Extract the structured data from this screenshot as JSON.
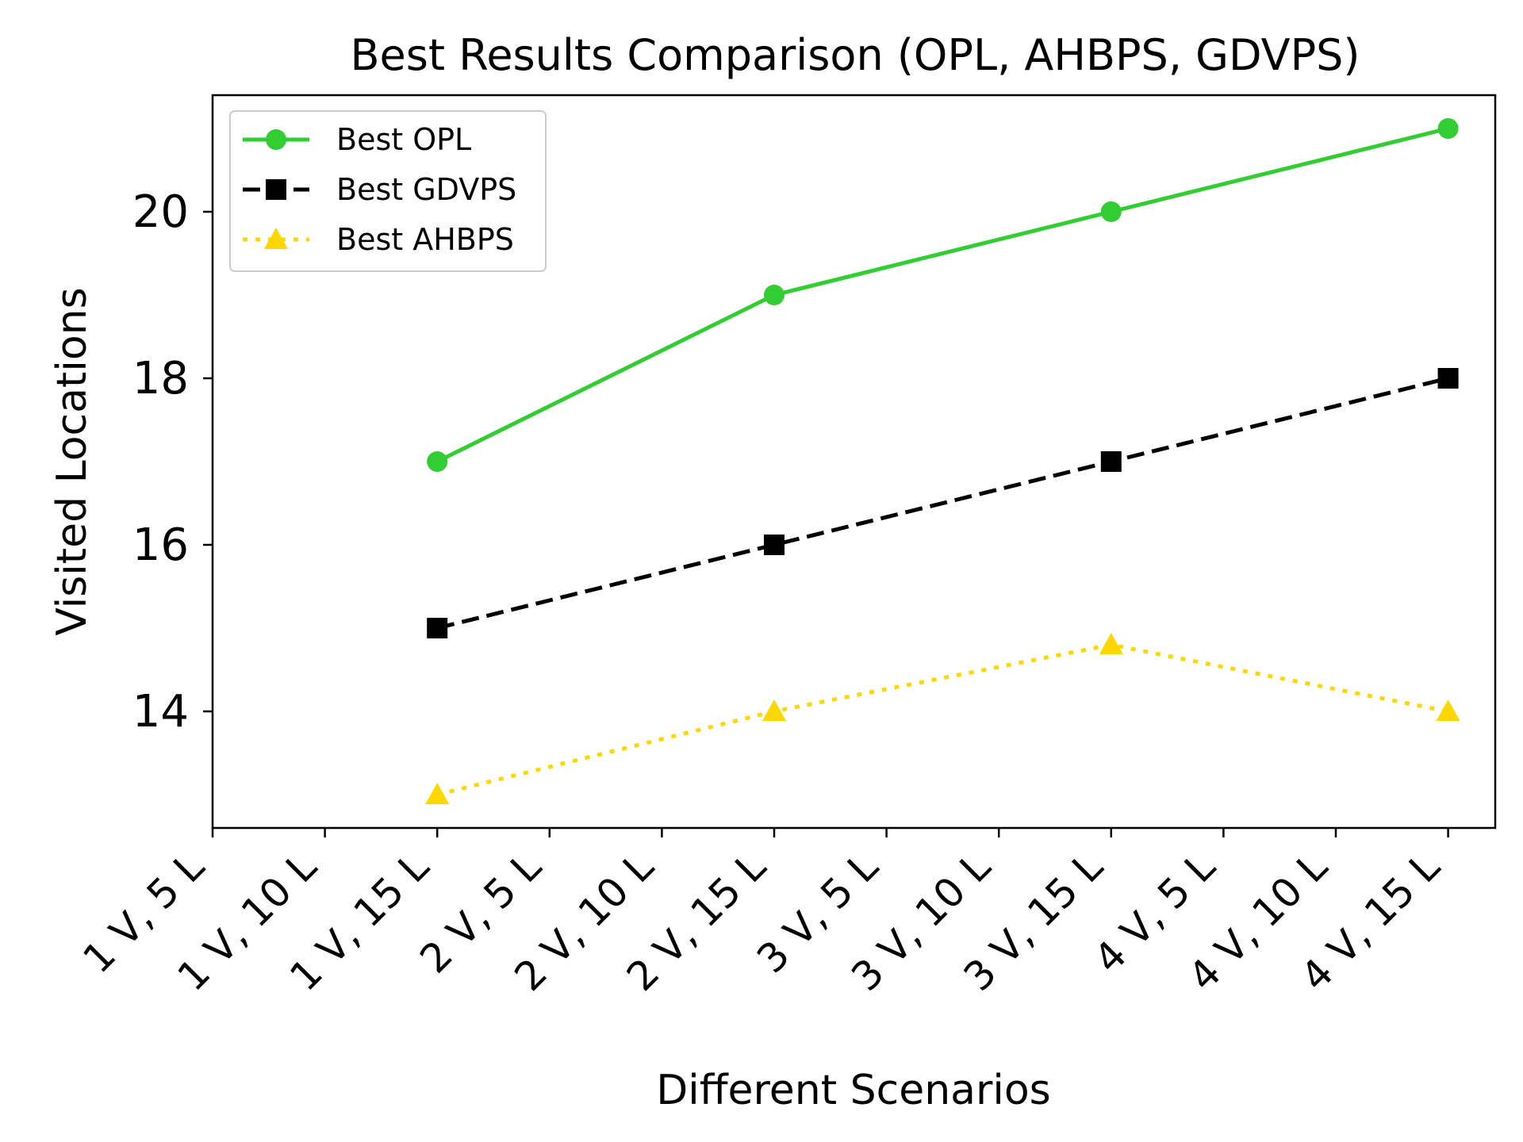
{
  "chart_data": {
    "type": "line",
    "title": "Best Results Comparison (OPL, AHBPS, GDVPS)",
    "xlabel": "Different Scenarios",
    "ylabel": "Visited Locations",
    "categories": [
      "1 V, 5 L",
      "1 V, 10 L",
      "1 V, 15 L",
      "2 V, 5 L",
      "2 V, 10 L",
      "2 V, 15 L",
      "3 V, 5 L",
      "3 V, 10 L",
      "3 V, 15 L",
      "4 V, 5 L",
      "4 V, 10 L",
      "4 V, 15 L"
    ],
    "ylim": [
      12.6,
      21.4
    ],
    "yticks": [
      "14",
      "16",
      "18",
      "20"
    ],
    "legend_position": "top-left",
    "grid": false,
    "series": [
      {
        "name": "Best OPL",
        "color": "#32cd32",
        "marker": "circle",
        "linestyle": "solid",
        "points": [
          [
            "1 V, 15 L",
            17
          ],
          [
            "2 V, 15 L",
            19
          ],
          [
            "3 V, 15 L",
            20
          ],
          [
            "4 V, 15 L",
            21
          ]
        ]
      },
      {
        "name": "Best GDVPS",
        "color": "#000000",
        "marker": "square",
        "linestyle": "dashed",
        "points": [
          [
            "1 V, 15 L",
            15
          ],
          [
            "2 V, 15 L",
            16
          ],
          [
            "3 V, 15 L",
            17
          ],
          [
            "4 V, 15 L",
            18
          ]
        ]
      },
      {
        "name": "Best AHBPS",
        "color": "#ffd700",
        "marker": "triangle",
        "linestyle": "dotted",
        "points": [
          [
            "1 V, 15 L",
            13
          ],
          [
            "2 V, 15 L",
            14
          ],
          [
            "3 V, 15 L",
            14.8
          ],
          [
            "4 V, 15 L",
            14
          ]
        ]
      }
    ]
  }
}
